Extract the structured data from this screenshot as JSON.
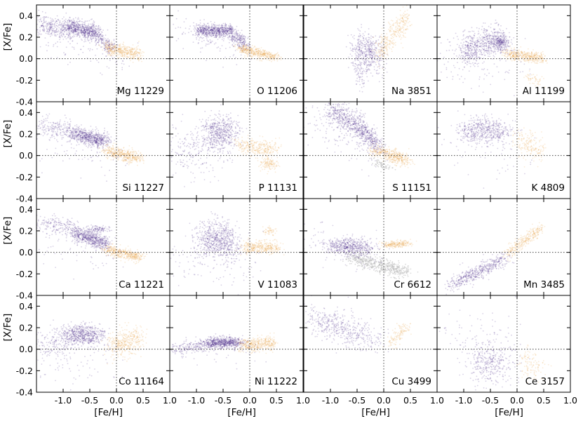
{
  "chart_data": {
    "type": "scatter",
    "xlabel": "[Fe/H]",
    "ylabel": "[X/Fe]",
    "xlim": [
      -1.5,
      1.0
    ],
    "ylim": [
      -0.4,
      0.5
    ],
    "xticks": [
      -1.0,
      -0.5,
      0.0,
      0.5,
      1.0
    ],
    "xtick_labels": [
      "-1.0",
      "-0.5",
      "0.0",
      "0.5",
      "1.0"
    ],
    "yticks": [
      -0.4,
      -0.2,
      0.0,
      0.2,
      0.4
    ],
    "ytick_labels": [
      "-0.4",
      "-0.2",
      "0.0",
      "0.2",
      "0.4"
    ],
    "reference_lines": {
      "x": 0.0,
      "y": 0.0
    },
    "colors": {
      "thick_disk": "#4b2a88",
      "thin_disk": "#e8a24a",
      "gray": "#bdbdbd"
    },
    "panels": [
      {
        "element": "Mg",
        "count": "11229",
        "label": "Mg 11229",
        "blobs": [
          {
            "series": "thick_disk",
            "x0": -1.45,
            "x1": -0.95,
            "y0": 0.32,
            "y1": 0.26,
            "sx": 0.1,
            "sy": 0.05,
            "n": 260
          },
          {
            "series": "thick_disk",
            "x0": -0.95,
            "x1": -0.35,
            "y0": 0.31,
            "y1": 0.23,
            "sx": 0.07,
            "sy": 0.04,
            "n": 700
          },
          {
            "series": "thick_disk",
            "x0": -0.35,
            "x1": -0.05,
            "y0": 0.2,
            "y1": 0.08,
            "sx": 0.05,
            "sy": 0.03,
            "n": 160
          },
          {
            "series": "thin_disk",
            "x0": -0.2,
            "x1": 0.45,
            "y0": 0.1,
            "y1": 0.04,
            "sx": 0.06,
            "sy": 0.03,
            "n": 420
          },
          {
            "series": "thick_disk",
            "x0": -1.4,
            "x1": 0.2,
            "y0": 0.2,
            "y1": 0.0,
            "sx": 0.12,
            "sy": 0.1,
            "n": 90
          }
        ]
      },
      {
        "element": "O",
        "count": "11206",
        "label": "O 11206",
        "blobs": [
          {
            "series": "thick_disk",
            "x0": -1.0,
            "x1": -0.35,
            "y0": 0.26,
            "y1": 0.26,
            "sx": 0.06,
            "sy": 0.03,
            "n": 650
          },
          {
            "series": "thick_disk",
            "x0": -0.35,
            "x1": -0.05,
            "y0": 0.22,
            "y1": 0.12,
            "sx": 0.05,
            "sy": 0.04,
            "n": 220
          },
          {
            "series": "thin_disk",
            "x0": -0.2,
            "x1": 0.5,
            "y0": 0.1,
            "y1": 0.01,
            "sx": 0.06,
            "sy": 0.02,
            "n": 450
          },
          {
            "series": "thick_disk",
            "x0": -1.4,
            "x1": 0.0,
            "y0": 0.3,
            "y1": 0.05,
            "sx": 0.15,
            "sy": 0.08,
            "n": 100
          }
        ]
      },
      {
        "element": "Na",
        "count": "3851",
        "label": "Na 3851",
        "blobs": [
          {
            "series": "thick_disk",
            "x0": -0.5,
            "x1": -0.1,
            "y0": 0.1,
            "y1": 0.02,
            "sx": 0.1,
            "sy": 0.1,
            "n": 450
          },
          {
            "series": "thin_disk",
            "x0": -0.1,
            "x1": 0.45,
            "y0": 0.05,
            "y1": 0.38,
            "sx": 0.05,
            "sy": 0.06,
            "n": 320
          },
          {
            "series": "thick_disk",
            "x0": -0.5,
            "x1": -0.4,
            "y0": -0.05,
            "y1": -0.2,
            "sx": 0.03,
            "sy": 0.08,
            "n": 60
          }
        ]
      },
      {
        "element": "Al",
        "count": "11199",
        "label": "Al 11199",
        "blobs": [
          {
            "series": "thick_disk",
            "x0": -1.0,
            "x1": -0.35,
            "y0": 0.08,
            "y1": 0.18,
            "sx": 0.08,
            "sy": 0.07,
            "n": 520
          },
          {
            "series": "thick_disk",
            "x0": -0.4,
            "x1": -0.2,
            "y0": 0.17,
            "y1": 0.15,
            "sx": 0.06,
            "sy": 0.04,
            "n": 250
          },
          {
            "series": "thin_disk",
            "x0": -0.2,
            "x1": 0.5,
            "y0": 0.05,
            "y1": 0.0,
            "sx": 0.06,
            "sy": 0.025,
            "n": 420
          },
          {
            "series": "thin_disk",
            "x0": 0.2,
            "x1": 0.45,
            "y0": -0.17,
            "y1": -0.2,
            "sx": 0.04,
            "sy": 0.03,
            "n": 50
          },
          {
            "series": "thick_disk",
            "x0": -1.45,
            "x1": 0.0,
            "y0": 0.0,
            "y1": 0.0,
            "sx": 0.15,
            "sy": 0.12,
            "n": 150
          }
        ]
      },
      {
        "element": "Si",
        "count": "11227",
        "label": "Si 11227",
        "blobs": [
          {
            "series": "thick_disk",
            "x0": -1.45,
            "x1": -0.8,
            "y0": 0.27,
            "y1": 0.22,
            "sx": 0.1,
            "sy": 0.05,
            "n": 200
          },
          {
            "series": "thick_disk",
            "x0": -0.8,
            "x1": -0.2,
            "y0": 0.21,
            "y1": 0.13,
            "sx": 0.07,
            "sy": 0.035,
            "n": 650
          },
          {
            "series": "thin_disk",
            "x0": -0.2,
            "x1": 0.45,
            "y0": 0.05,
            "y1": -0.03,
            "sx": 0.06,
            "sy": 0.03,
            "n": 430
          },
          {
            "series": "thick_disk",
            "x0": -1.4,
            "x1": 0.0,
            "y0": 0.1,
            "y1": 0.0,
            "sx": 0.15,
            "sy": 0.1,
            "n": 80
          }
        ]
      },
      {
        "element": "P",
        "count": "11131",
        "label": "P 11131",
        "blobs": [
          {
            "series": "thick_disk",
            "x0": -0.8,
            "x1": -0.3,
            "y0": 0.22,
            "y1": 0.22,
            "sx": 0.1,
            "sy": 0.08,
            "n": 500
          },
          {
            "series": "thick_disk",
            "x0": -1.45,
            "x1": -0.5,
            "y0": 0.05,
            "y1": 0.05,
            "sx": 0.15,
            "sy": 0.12,
            "n": 250
          },
          {
            "series": "thin_disk",
            "x0": -0.2,
            "x1": 0.45,
            "y0": 0.1,
            "y1": 0.05,
            "sx": 0.08,
            "sy": 0.04,
            "n": 300
          },
          {
            "series": "thin_disk",
            "x0": 0.2,
            "x1": 0.5,
            "y0": -0.08,
            "y1": -0.08,
            "sx": 0.05,
            "sy": 0.03,
            "n": 120
          }
        ]
      },
      {
        "element": "S",
        "count": "11151",
        "label": "S 11151",
        "blobs": [
          {
            "series": "thick_disk",
            "x0": -1.0,
            "x1": -0.5,
            "y0": 0.42,
            "y1": 0.28,
            "sx": 0.1,
            "sy": 0.06,
            "n": 420
          },
          {
            "series": "thick_disk",
            "x0": -0.5,
            "x1": -0.1,
            "y0": 0.28,
            "y1": 0.08,
            "sx": 0.07,
            "sy": 0.04,
            "n": 380
          },
          {
            "series": "thin_disk",
            "x0": -0.2,
            "x1": 0.45,
            "y0": 0.05,
            "y1": -0.05,
            "sx": 0.07,
            "sy": 0.03,
            "n": 420
          },
          {
            "series": "gray",
            "x0": -0.2,
            "x1": 0.1,
            "y0": -0.05,
            "y1": -0.12,
            "sx": 0.05,
            "sy": 0.02,
            "n": 60
          },
          {
            "series": "thick_disk",
            "x0": -1.4,
            "x1": 0.0,
            "y0": 0.3,
            "y1": 0.0,
            "sx": 0.15,
            "sy": 0.1,
            "n": 120
          }
        ]
      },
      {
        "element": "K",
        "count": "4809",
        "label": "K 4809",
        "blobs": [
          {
            "series": "thick_disk",
            "x0": -1.0,
            "x1": -0.2,
            "y0": 0.25,
            "y1": 0.22,
            "sx": 0.13,
            "sy": 0.06,
            "n": 520
          },
          {
            "series": "thin_disk",
            "x0": 0.0,
            "x1": 0.45,
            "y0": 0.12,
            "y1": 0.06,
            "sx": 0.08,
            "sy": 0.07,
            "n": 180
          },
          {
            "series": "thick_disk",
            "x0": -1.4,
            "x1": 0.0,
            "y0": 0.1,
            "y1": 0.0,
            "sx": 0.2,
            "sy": 0.15,
            "n": 60
          }
        ]
      },
      {
        "element": "Ca",
        "count": "11221",
        "label": "Ca 11221",
        "blobs": [
          {
            "series": "thick_disk",
            "x0": -1.45,
            "x1": -0.8,
            "y0": 0.28,
            "y1": 0.22,
            "sx": 0.1,
            "sy": 0.04,
            "n": 180
          },
          {
            "series": "thick_disk",
            "x0": -0.8,
            "x1": -0.2,
            "y0": 0.19,
            "y1": 0.08,
            "sx": 0.07,
            "sy": 0.035,
            "n": 620
          },
          {
            "series": "thick_disk",
            "x0": -0.5,
            "x1": -0.2,
            "y0": 0.22,
            "y1": 0.22,
            "sx": 0.06,
            "sy": 0.015,
            "n": 90
          },
          {
            "series": "thin_disk",
            "x0": -0.2,
            "x1": 0.45,
            "y0": 0.03,
            "y1": -0.05,
            "sx": 0.06,
            "sy": 0.025,
            "n": 420
          },
          {
            "series": "thick_disk",
            "x0": -1.4,
            "x1": 0.0,
            "y0": 0.1,
            "y1": 0.0,
            "sx": 0.15,
            "sy": 0.1,
            "n": 80
          }
        ]
      },
      {
        "element": "V",
        "count": "11083",
        "label": "V 11083",
        "blobs": [
          {
            "series": "thick_disk",
            "x0": -0.9,
            "x1": -0.3,
            "y0": 0.15,
            "y1": 0.08,
            "sx": 0.12,
            "sy": 0.08,
            "n": 650
          },
          {
            "series": "thin_disk",
            "x0": -0.1,
            "x1": 0.5,
            "y0": 0.05,
            "y1": 0.05,
            "sx": 0.08,
            "sy": 0.03,
            "n": 350
          },
          {
            "series": "thin_disk",
            "x0": 0.3,
            "x1": 0.45,
            "y0": 0.2,
            "y1": 0.2,
            "sx": 0.04,
            "sy": 0.02,
            "n": 50
          },
          {
            "series": "thick_disk",
            "x0": -1.45,
            "x1": 0.0,
            "y0": -0.05,
            "y1": -0.1,
            "sx": 0.18,
            "sy": 0.12,
            "n": 150
          }
        ]
      },
      {
        "element": "Cr",
        "count": "6612",
        "label": "Cr 6612",
        "blobs": [
          {
            "series": "gray",
            "x0": -0.6,
            "x1": 0.4,
            "y0": -0.05,
            "y1": -0.18,
            "sx": 0.1,
            "sy": 0.03,
            "n": 500
          },
          {
            "series": "thick_disk",
            "x0": -1.0,
            "x1": -0.3,
            "y0": 0.06,
            "y1": 0.04,
            "sx": 0.12,
            "sy": 0.04,
            "n": 520
          },
          {
            "series": "thin_disk",
            "x0": 0.0,
            "x1": 0.45,
            "y0": 0.07,
            "y1": 0.08,
            "sx": 0.07,
            "sy": 0.015,
            "n": 220
          },
          {
            "series": "thick_disk",
            "x0": -1.45,
            "x1": 0.0,
            "y0": 0.15,
            "y1": -0.05,
            "sx": 0.15,
            "sy": 0.1,
            "n": 100
          }
        ]
      },
      {
        "element": "Mn",
        "count": "3485",
        "label": "Mn 3485",
        "blobs": [
          {
            "series": "thick_disk",
            "x0": -1.2,
            "x1": -0.2,
            "y0": -0.3,
            "y1": -0.05,
            "sx": 0.07,
            "sy": 0.03,
            "n": 450
          },
          {
            "series": "thin_disk",
            "x0": -0.2,
            "x1": 0.45,
            "y0": -0.02,
            "y1": 0.22,
            "sx": 0.05,
            "sy": 0.03,
            "n": 300
          },
          {
            "series": "thick_disk",
            "x0": -1.3,
            "x1": -0.5,
            "y0": -0.35,
            "y1": -0.1,
            "sx": 0.1,
            "sy": 0.06,
            "n": 60
          }
        ]
      },
      {
        "element": "Co",
        "count": "11164",
        "label": "Co 11164",
        "blobs": [
          {
            "series": "thick_disk",
            "x0": -0.9,
            "x1": -0.35,
            "y0": 0.13,
            "y1": 0.13,
            "sx": 0.1,
            "sy": 0.05,
            "n": 600
          },
          {
            "series": "thick_disk",
            "x0": -1.45,
            "x1": -0.9,
            "y0": 0.03,
            "y1": 0.08,
            "sx": 0.1,
            "sy": 0.08,
            "n": 150
          },
          {
            "series": "thin_disk",
            "x0": -0.1,
            "x1": 0.45,
            "y0": 0.02,
            "y1": 0.1,
            "sx": 0.08,
            "sy": 0.06,
            "n": 380
          },
          {
            "series": "thick_disk",
            "x0": -1.4,
            "x1": 0.0,
            "y0": -0.1,
            "y1": -0.1,
            "sx": 0.15,
            "sy": 0.12,
            "n": 80
          }
        ]
      },
      {
        "element": "Ni",
        "count": "11222",
        "label": "Ni 11222",
        "blobs": [
          {
            "series": "thick_disk",
            "x0": -1.4,
            "x1": -0.8,
            "y0": 0.0,
            "y1": 0.04,
            "sx": 0.1,
            "sy": 0.03,
            "n": 180
          },
          {
            "series": "thick_disk",
            "x0": -0.8,
            "x1": -0.2,
            "y0": 0.06,
            "y1": 0.06,
            "sx": 0.1,
            "sy": 0.025,
            "n": 650
          },
          {
            "series": "thin_disk",
            "x0": -0.15,
            "x1": 0.45,
            "y0": 0.03,
            "y1": 0.06,
            "sx": 0.06,
            "sy": 0.03,
            "n": 400
          },
          {
            "series": "thick_disk",
            "x0": -1.4,
            "x1": 0.0,
            "y0": 0.0,
            "y1": 0.0,
            "sx": 0.15,
            "sy": 0.08,
            "n": 60
          }
        ]
      },
      {
        "element": "Cu",
        "count": "3499",
        "label": "Cu 3499",
        "blobs": [
          {
            "series": "thick_disk",
            "x0": -1.3,
            "x1": -0.2,
            "y0": 0.28,
            "y1": 0.1,
            "sx": 0.12,
            "sy": 0.07,
            "n": 420
          },
          {
            "series": "thin_disk",
            "x0": 0.1,
            "x1": 0.45,
            "y0": 0.05,
            "y1": 0.22,
            "sx": 0.05,
            "sy": 0.04,
            "n": 120
          },
          {
            "series": "thick_disk",
            "x0": -1.4,
            "x1": 0.0,
            "y0": 0.4,
            "y1": 0.0,
            "sx": 0.15,
            "sy": 0.1,
            "n": 60
          }
        ]
      },
      {
        "element": "Ce",
        "count": "3157",
        "label": "Ce 3157",
        "blobs": [
          {
            "series": "thick_disk",
            "x0": -0.8,
            "x1": -0.2,
            "y0": -0.1,
            "y1": -0.15,
            "sx": 0.15,
            "sy": 0.1,
            "n": 350
          },
          {
            "series": "thin_disk",
            "x0": 0.1,
            "x1": 0.45,
            "y0": -0.1,
            "y1": -0.2,
            "sx": 0.07,
            "sy": 0.07,
            "n": 110
          },
          {
            "series": "thick_disk",
            "x0": -1.4,
            "x1": 0.0,
            "y0": 0.15,
            "y1": 0.05,
            "sx": 0.2,
            "sy": 0.12,
            "n": 80
          }
        ]
      }
    ]
  }
}
